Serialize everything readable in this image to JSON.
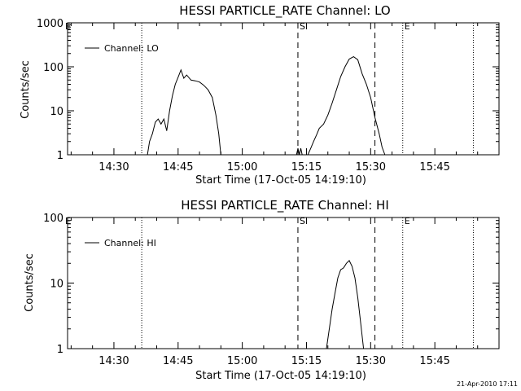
{
  "footer": {
    "timestamp": "21-Apr-2010 17:11"
  },
  "chart_data": [
    {
      "type": "line",
      "title": "HESSI PARTICLE_RATE Channel: LO",
      "xlabel": "Start Time (17-Oct-05 14:19:10)",
      "ylabel": "Counts/sec",
      "yscale": "log",
      "ylim": [
        1,
        1000
      ],
      "xlim": [
        "14:19:10",
        "16:00:00"
      ],
      "xticks": [
        "14:30",
        "14:45",
        "15:00",
        "15:15",
        "15:30",
        "15:45"
      ],
      "yticks": [
        "1",
        "10",
        "100",
        "1000"
      ],
      "legend": {
        "label": "Channel: LO",
        "position": "top-left"
      },
      "markers": [
        {
          "time": "14:36:30",
          "style": "dotted",
          "label": ""
        },
        {
          "time": "15:13",
          "style": "dashed",
          "label": "S"
        },
        {
          "time": "15:31",
          "style": "dashed",
          "label": ""
        },
        {
          "time": "15:37:30",
          "style": "dotted",
          "label": "E"
        },
        {
          "time": "15:54",
          "style": "dotted",
          "label": ""
        }
      ],
      "corner_label": "E",
      "series": [
        {
          "name": "Channel: LO",
          "segments": [
            [
              [
                "14:37:50",
                1
              ],
              [
                "14:38:20",
                2.0
              ],
              [
                "14:39:00",
                3.0
              ],
              [
                "14:39:40",
                5.5
              ],
              [
                "14:40:20",
                6.5
              ],
              [
                "14:41:00",
                5.0
              ],
              [
                "14:41:40",
                6.5
              ],
              [
                "14:42:20",
                3.5
              ],
              [
                "14:43:00",
                10
              ],
              [
                "14:43:40",
                22
              ],
              [
                "14:44:20",
                40
              ],
              [
                "14:45:00",
                58
              ],
              [
                "14:45:40",
                85
              ],
              [
                "14:46:20",
                55
              ],
              [
                "14:47:00",
                65
              ],
              [
                "14:48:00",
                50
              ],
              [
                "14:49:00",
                48
              ],
              [
                "14:50:00",
                45
              ],
              [
                "14:51:00",
                38
              ],
              [
                "14:52:00",
                30
              ],
              [
                "14:53:00",
                20
              ],
              [
                "14:53:50",
                8
              ],
              [
                "14:54:30",
                3
              ],
              [
                "14:55:00",
                1
              ]
            ],
            [
              [
                "15:12:40",
                1
              ],
              [
                "15:13:00",
                1.4
              ],
              [
                "15:13:20",
                1
              ],
              [
                "15:13:40",
                1.4
              ],
              [
                "15:14:00",
                1
              ]
            ],
            [
              [
                "15:15:20",
                1
              ],
              [
                "15:16:00",
                1.4
              ],
              [
                "15:16:40",
                2.0
              ],
              [
                "15:17:20",
                2.8
              ],
              [
                "15:18:00",
                4.0
              ],
              [
                "15:19:00",
                5.0
              ],
              [
                "15:20:00",
                8.0
              ],
              [
                "15:21:00",
                15
              ],
              [
                "15:22:00",
                30
              ],
              [
                "15:23:00",
                60
              ],
              [
                "15:24:00",
                100
              ],
              [
                "15:25:00",
                150
              ],
              [
                "15:26:00",
                170
              ],
              [
                "15:27:00",
                145
              ],
              [
                "15:28:00",
                70
              ],
              [
                "15:29:00",
                40
              ],
              [
                "15:30:00",
                20
              ],
              [
                "15:31:00",
                7
              ],
              [
                "15:32:00",
                3
              ],
              [
                "15:32:40",
                1.5
              ],
              [
                "15:33:20",
                1
              ]
            ]
          ]
        }
      ]
    },
    {
      "type": "line",
      "title": "HESSI PARTICLE_RATE Channel: HI",
      "xlabel": "Start Time (17-Oct-05 14:19:10)",
      "ylabel": "Counts/sec",
      "yscale": "log",
      "ylim": [
        1,
        100
      ],
      "xlim": [
        "14:19:10",
        "16:00:00"
      ],
      "xticks": [
        "14:30",
        "14:45",
        "15:00",
        "15:15",
        "15:30",
        "15:45"
      ],
      "yticks": [
        "1",
        "10",
        "100"
      ],
      "legend": {
        "label": "Channel: HI",
        "position": "top-left"
      },
      "markers": [
        {
          "time": "14:36:30",
          "style": "dotted",
          "label": ""
        },
        {
          "time": "15:13",
          "style": "dashed",
          "label": "S"
        },
        {
          "time": "15:31",
          "style": "dashed",
          "label": ""
        },
        {
          "time": "15:37:30",
          "style": "dotted",
          "label": "E"
        },
        {
          "time": "15:54",
          "style": "dotted",
          "label": ""
        }
      ],
      "corner_label": "E",
      "series": [
        {
          "name": "Channel: HI",
          "segments": [
            [
              [
                "15:19:40",
                1
              ],
              [
                "15:20:20",
                2
              ],
              [
                "15:21:00",
                4
              ],
              [
                "15:21:40",
                7
              ],
              [
                "15:22:20",
                12
              ],
              [
                "15:23:00",
                16
              ],
              [
                "15:23:40",
                17
              ],
              [
                "15:24:20",
                20
              ],
              [
                "15:25:00",
                22
              ],
              [
                "15:25:40",
                18
              ],
              [
                "15:26:20",
                12
              ],
              [
                "15:27:00",
                6
              ],
              [
                "15:27:40",
                2.5
              ],
              [
                "15:28:20",
                1
              ]
            ]
          ]
        }
      ]
    }
  ]
}
